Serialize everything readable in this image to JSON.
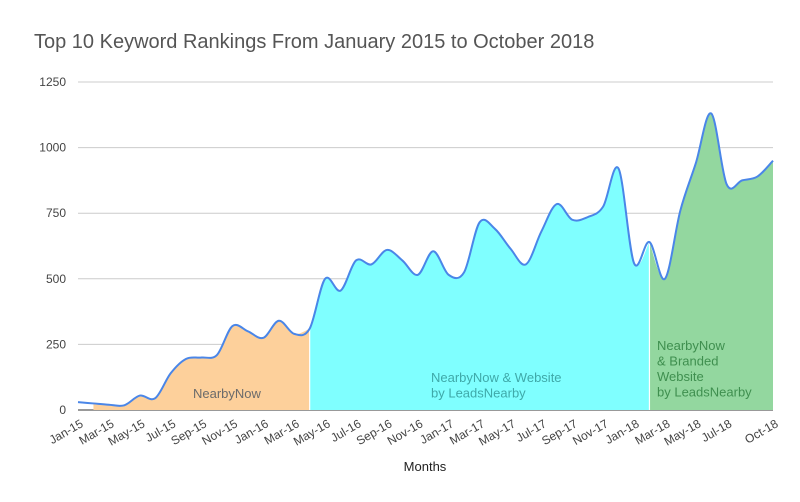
{
  "chart_data": {
    "type": "area",
    "title": "Top 10 Keyword Rankings From January 2015 to October 2018",
    "xlabel": "Months",
    "ylabel": "",
    "ylim": [
      0,
      1250
    ],
    "yticks": [
      0,
      250,
      500,
      750,
      1000,
      1250
    ],
    "grid": true,
    "x": [
      "Jan-15",
      "Feb-15",
      "Mar-15",
      "Apr-15",
      "May-15",
      "Jun-15",
      "Jul-15",
      "Aug-15",
      "Sep-15",
      "Oct-15",
      "Nov-15",
      "Dec-15",
      "Jan-16",
      "Feb-16",
      "Mar-16",
      "Apr-16",
      "May-16",
      "Jun-16",
      "Jul-16",
      "Aug-16",
      "Sep-16",
      "Oct-16",
      "Nov-16",
      "Dec-16",
      "Jan-17",
      "Feb-17",
      "Mar-17",
      "Apr-17",
      "May-17",
      "Jun-17",
      "Jul-17",
      "Aug-17",
      "Sep-17",
      "Oct-17",
      "Nov-17",
      "Dec-17",
      "Jan-18",
      "Feb-18",
      "Mar-18",
      "Apr-18",
      "May-18",
      "Jun-18",
      "Jul-18",
      "Aug-18",
      "Sep-18",
      "Oct-18"
    ],
    "xtick_labels": [
      "Jan-15",
      "Mar-15",
      "May-15",
      "Jul-15",
      "Sep-15",
      "Nov-15",
      "Jan-16",
      "Mar-16",
      "May-16",
      "Jul-16",
      "Sep-16",
      "Nov-16",
      "Jan-17",
      "Mar-17",
      "May-17",
      "Jul-17",
      "Sep-17",
      "Nov-17",
      "Jan-18",
      "Mar-18",
      "May-18",
      "Jul-18",
      "Oct-18"
    ],
    "series": [
      {
        "values": [
          30,
          25,
          20,
          18,
          55,
          45,
          140,
          195,
          200,
          210,
          320,
          300,
          275,
          340,
          290,
          310,
          500,
          455,
          570,
          555,
          610,
          570,
          515,
          605,
          515,
          525,
          715,
          690,
          615,
          555,
          680,
          785,
          725,
          735,
          775,
          920,
          560,
          640,
          500,
          760,
          940,
          1130,
          860,
          875,
          890,
          950
        ],
        "color": "#4a86e8"
      }
    ],
    "regions": [
      {
        "label": [
          "NearbyNow"
        ],
        "start": "Feb-15",
        "end": "Apr-16",
        "color": "#fdd09b"
      },
      {
        "label": [
          "NearbyNow & Website",
          "by LeadsNearby"
        ],
        "start": "Apr-16",
        "end": "Feb-18",
        "color": "#7fffff"
      },
      {
        "label": [
          "NearbyNow",
          "& Branded",
          "Website",
          "by LeadsNearby"
        ],
        "start": "Feb-18",
        "end": "Oct-18",
        "color": "#93d79f"
      }
    ]
  }
}
